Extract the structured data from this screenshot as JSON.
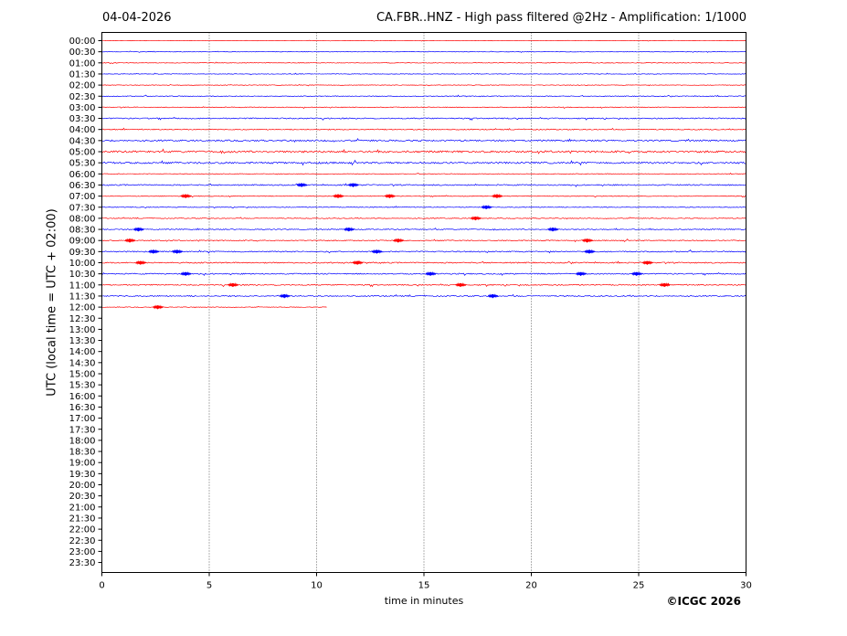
{
  "header": {
    "date": "04-04-2026",
    "title": "CA.FBR..HNZ - High pass filtered @2Hz - Amplification: 1/1000"
  },
  "footer": {
    "copyright": "©ICGC 2026"
  },
  "chart_data": {
    "type": "line",
    "xlabel": "time in minutes",
    "ylabel": "UTC (local time = UTC + 02:00)",
    "xlim": [
      0,
      30
    ],
    "x_ticks": [
      0,
      5,
      10,
      15,
      20,
      25,
      30
    ],
    "x_grid": "dotted vertical lines at 5-minute intervals",
    "y_ticks": [
      "00:00",
      "00:30",
      "01:00",
      "01:30",
      "02:00",
      "02:30",
      "03:00",
      "03:30",
      "04:00",
      "04:30",
      "05:00",
      "05:30",
      "06:00",
      "06:30",
      "07:00",
      "07:30",
      "08:00",
      "08:30",
      "09:00",
      "09:30",
      "10:00",
      "10:30",
      "11:00",
      "11:30",
      "12:00",
      "12:30",
      "13:00",
      "13:30",
      "14:00",
      "14:30",
      "15:00",
      "15:30",
      "16:00",
      "16:30",
      "17:00",
      "17:30",
      "18:00",
      "18:30",
      "19:00",
      "19:30",
      "20:00",
      "20:30",
      "21:00",
      "21:30",
      "22:00",
      "22:30",
      "23:00",
      "23:30"
    ],
    "trace_colors": [
      "#ff0000",
      "#0000ff"
    ],
    "traces": [
      {
        "row": "00:00",
        "end_minute": 30,
        "noise": 0.2,
        "events": []
      },
      {
        "row": "00:30",
        "end_minute": 30,
        "noise": 0.25,
        "events": []
      },
      {
        "row": "01:00",
        "end_minute": 30,
        "noise": 0.3,
        "events": []
      },
      {
        "row": "01:30",
        "end_minute": 30,
        "noise": 0.3,
        "events": []
      },
      {
        "row": "02:00",
        "end_minute": 30,
        "noise": 0.3,
        "events": []
      },
      {
        "row": "02:30",
        "end_minute": 30,
        "noise": 0.4,
        "events": []
      },
      {
        "row": "03:00",
        "end_minute": 30,
        "noise": 0.4,
        "events": []
      },
      {
        "row": "03:30",
        "end_minute": 30,
        "noise": 0.6,
        "events": []
      },
      {
        "row": "04:00",
        "end_minute": 30,
        "noise": 0.5,
        "events": []
      },
      {
        "row": "04:30",
        "end_minute": 30,
        "noise": 0.8,
        "events": []
      },
      {
        "row": "05:00",
        "end_minute": 30,
        "noise": 1.0,
        "events": []
      },
      {
        "row": "05:30",
        "end_minute": 30,
        "noise": 0.9,
        "events": []
      },
      {
        "row": "06:00",
        "end_minute": 30,
        "noise": 0.3,
        "events": []
      },
      {
        "row": "06:30",
        "end_minute": 30,
        "noise": 0.6,
        "events": [
          9.3,
          11.7
        ]
      },
      {
        "row": "07:00",
        "end_minute": 30,
        "noise": 0.4,
        "events": [
          3.9,
          11.0,
          13.4,
          18.4
        ]
      },
      {
        "row": "07:30",
        "end_minute": 30,
        "noise": 0.4,
        "events": [
          17.9
        ]
      },
      {
        "row": "08:00",
        "end_minute": 30,
        "noise": 0.4,
        "events": [
          17.4
        ]
      },
      {
        "row": "08:30",
        "end_minute": 30,
        "noise": 0.5,
        "events": [
          1.7,
          11.5,
          21.0
        ]
      },
      {
        "row": "09:00",
        "end_minute": 30,
        "noise": 0.5,
        "events": [
          1.3,
          13.8,
          22.6
        ]
      },
      {
        "row": "09:30",
        "end_minute": 30,
        "noise": 0.6,
        "events": [
          2.4,
          3.5,
          12.8,
          22.7
        ]
      },
      {
        "row": "10:00",
        "end_minute": 30,
        "noise": 0.6,
        "events": [
          1.8,
          11.9,
          25.4
        ]
      },
      {
        "row": "10:30",
        "end_minute": 30,
        "noise": 0.6,
        "events": [
          3.9,
          15.3,
          22.3,
          24.9
        ]
      },
      {
        "row": "11:00",
        "end_minute": 30,
        "noise": 0.6,
        "events": [
          6.1,
          16.7,
          26.2
        ]
      },
      {
        "row": "11:30",
        "end_minute": 30,
        "noise": 0.6,
        "events": [
          8.5,
          18.2
        ]
      },
      {
        "row": "12:00",
        "end_minute": 10.5,
        "noise": 0.3,
        "events": [
          2.6
        ]
      }
    ]
  }
}
